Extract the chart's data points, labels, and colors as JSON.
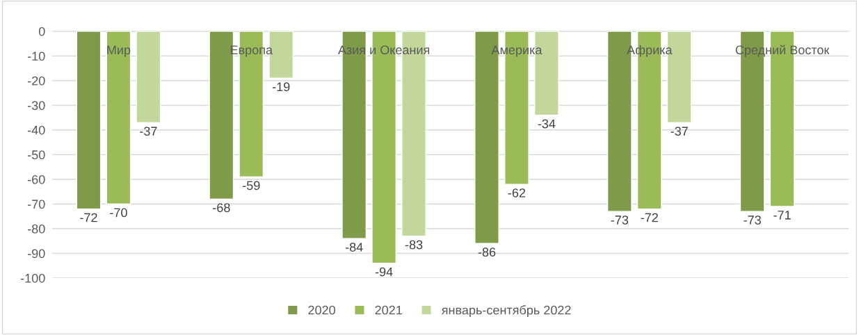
{
  "chart_data": {
    "type": "bar",
    "categories": [
      "Мир",
      "Европа",
      "Азия и Океания",
      "Америка",
      "Африка",
      "Средний Восток"
    ],
    "series": [
      {
        "name": "2020",
        "color": "#7f9a48",
        "values": [
          -72,
          -68,
          -84,
          -86,
          -73,
          -73
        ]
      },
      {
        "name": "2021",
        "color": "#9bbb59",
        "values": [
          -70,
          -59,
          -94,
          -62,
          -72,
          -71
        ]
      },
      {
        "name": "январь-сентябрь 2022",
        "color": "#c3d69b",
        "values": [
          -37,
          -19,
          -83,
          -34,
          -37,
          null
        ]
      }
    ],
    "ylim": [
      -100,
      0
    ],
    "yticks": [
      0,
      -10,
      -20,
      -30,
      -40,
      -50,
      -60,
      -70,
      -80,
      -90,
      -100
    ],
    "grid": "y",
    "legend": "bottom",
    "data_labels": true
  }
}
